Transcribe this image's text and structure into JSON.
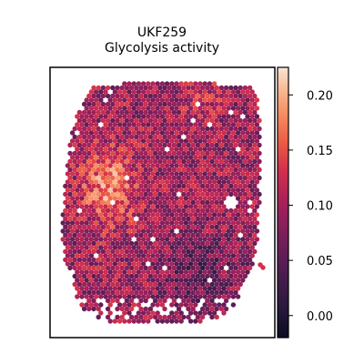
{
  "chart_data": {
    "type": "heatmap",
    "subtype": "spatial-hexbin",
    "title": "UKF259",
    "subtitle": "Glycolysis activity",
    "xlabel": "",
    "ylabel": "",
    "grid": false,
    "colorbar": {
      "colormap": "rocket",
      "range": [
        -0.02,
        0.225
      ],
      "ticks": [
        0.0,
        0.05,
        0.1,
        0.15,
        0.2
      ],
      "tick_labels": [
        "0.00",
        "0.05",
        "0.10",
        "0.15",
        "0.20"
      ]
    },
    "value_summary": {
      "typical": 0.1,
      "min": -0.02,
      "max": 0.22,
      "high_region": "left-center (about 0.15-0.20)",
      "low_region": "lower-right (about 0.02-0.06)"
    }
  },
  "colors": {
    "low": "#0b0c1f",
    "high": "#fbe6d6",
    "frame": "#000000",
    "background": "#ffffff"
  }
}
